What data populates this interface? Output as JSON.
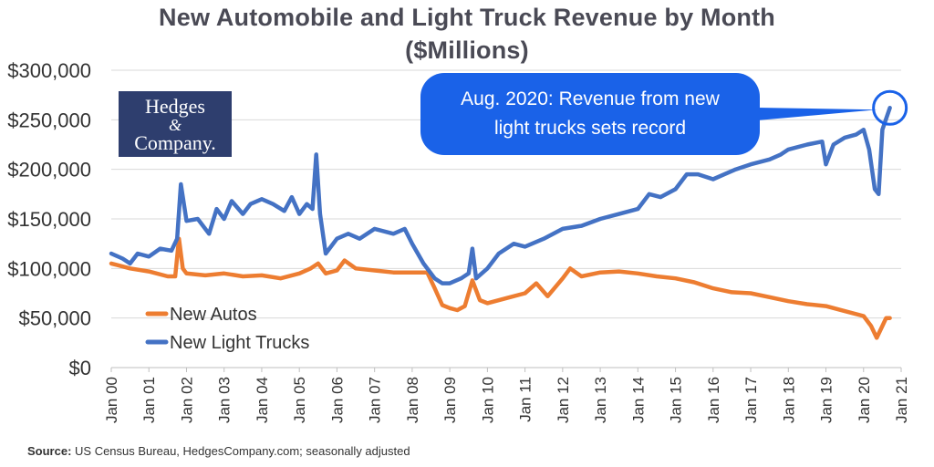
{
  "title_line1": "New Automobile and Light Truck Revenue by Month",
  "title_line2": "($Millions)",
  "source_label": "Source:",
  "source_text": " US Census Bureau, HedgesCompany.com; seasonally adjusted",
  "logo": {
    "line1": "Hedges",
    "line2": "&",
    "line3": "Company."
  },
  "callout": {
    "line1": "Aug. 2020: Revenue from new",
    "line2": "light trucks sets record"
  },
  "colors": {
    "autos": "#ed7d31",
    "trucks": "#4472c4",
    "callout": "#1a62e8",
    "logo": "#2e3e6e"
  },
  "chart_data": {
    "type": "line",
    "y_ticks": [
      "$0",
      "$50,000",
      "$100,000",
      "$150,000",
      "$200,000",
      "$250,000",
      "$300,000"
    ],
    "ylim": [
      0,
      300000
    ],
    "x_ticks": [
      "Jan 00",
      "Jan 01",
      "Jan 02",
      "Jan 03",
      "Jan 04",
      "Jan 05",
      "Jan 06",
      "Jan 07",
      "Jan 08",
      "Jan 09",
      "Jan 10",
      "Jan 11",
      "Jan 12",
      "Jan 13",
      "Jan 14",
      "Jan 15",
      "Jan 16",
      "Jan 17",
      "Jan 18",
      "Jan 19",
      "Jan 20",
      "Jan 21"
    ],
    "xlim": [
      2000,
      2021
    ],
    "legend_position": "lower-left",
    "grid": true,
    "series": [
      {
        "name": "New Autos",
        "color": "#ed7d31",
        "points": [
          [
            2000.0,
            105000
          ],
          [
            2000.5,
            100000
          ],
          [
            2001.0,
            97000
          ],
          [
            2001.5,
            92000
          ],
          [
            2001.7,
            92000
          ],
          [
            2001.8,
            130000
          ],
          [
            2001.9,
            100000
          ],
          [
            2002.0,
            95000
          ],
          [
            2002.5,
            93000
          ],
          [
            2003.0,
            95000
          ],
          [
            2003.5,
            92000
          ],
          [
            2004.0,
            93000
          ],
          [
            2004.5,
            90000
          ],
          [
            2005.0,
            95000
          ],
          [
            2005.3,
            100000
          ],
          [
            2005.5,
            105000
          ],
          [
            2005.7,
            95000
          ],
          [
            2006.0,
            98000
          ],
          [
            2006.2,
            108000
          ],
          [
            2006.5,
            100000
          ],
          [
            2007.0,
            98000
          ],
          [
            2007.5,
            96000
          ],
          [
            2008.0,
            96000
          ],
          [
            2008.4,
            96000
          ],
          [
            2008.6,
            80000
          ],
          [
            2008.8,
            63000
          ],
          [
            2009.0,
            60000
          ],
          [
            2009.2,
            58000
          ],
          [
            2009.4,
            62000
          ],
          [
            2009.6,
            88000
          ],
          [
            2009.8,
            68000
          ],
          [
            2010.0,
            65000
          ],
          [
            2010.5,
            70000
          ],
          [
            2011.0,
            75000
          ],
          [
            2011.3,
            85000
          ],
          [
            2011.6,
            72000
          ],
          [
            2012.0,
            90000
          ],
          [
            2012.2,
            100000
          ],
          [
            2012.5,
            92000
          ],
          [
            2013.0,
            96000
          ],
          [
            2013.5,
            97000
          ],
          [
            2014.0,
            95000
          ],
          [
            2014.5,
            92000
          ],
          [
            2015.0,
            90000
          ],
          [
            2015.5,
            86000
          ],
          [
            2016.0,
            80000
          ],
          [
            2016.5,
            76000
          ],
          [
            2017.0,
            75000
          ],
          [
            2017.5,
            71000
          ],
          [
            2018.0,
            67000
          ],
          [
            2018.5,
            64000
          ],
          [
            2019.0,
            62000
          ],
          [
            2019.5,
            57000
          ],
          [
            2020.0,
            52000
          ],
          [
            2020.2,
            42000
          ],
          [
            2020.35,
            30000
          ],
          [
            2020.5,
            42000
          ],
          [
            2020.6,
            50000
          ],
          [
            2020.7,
            50000
          ]
        ]
      },
      {
        "name": "New Light Trucks",
        "color": "#4472c4",
        "points": [
          [
            2000.0,
            115000
          ],
          [
            2000.3,
            110000
          ],
          [
            2000.5,
            105000
          ],
          [
            2000.7,
            115000
          ],
          [
            2001.0,
            112000
          ],
          [
            2001.3,
            120000
          ],
          [
            2001.6,
            118000
          ],
          [
            2001.75,
            130000
          ],
          [
            2001.85,
            185000
          ],
          [
            2002.0,
            148000
          ],
          [
            2002.3,
            150000
          ],
          [
            2002.6,
            135000
          ],
          [
            2002.8,
            160000
          ],
          [
            2003.0,
            150000
          ],
          [
            2003.2,
            168000
          ],
          [
            2003.5,
            155000
          ],
          [
            2003.7,
            165000
          ],
          [
            2004.0,
            170000
          ],
          [
            2004.3,
            165000
          ],
          [
            2004.6,
            158000
          ],
          [
            2004.8,
            172000
          ],
          [
            2005.0,
            155000
          ],
          [
            2005.2,
            165000
          ],
          [
            2005.35,
            160000
          ],
          [
            2005.45,
            215000
          ],
          [
            2005.55,
            155000
          ],
          [
            2005.7,
            115000
          ],
          [
            2006.0,
            130000
          ],
          [
            2006.3,
            135000
          ],
          [
            2006.6,
            130000
          ],
          [
            2007.0,
            140000
          ],
          [
            2007.5,
            135000
          ],
          [
            2007.8,
            140000
          ],
          [
            2008.0,
            125000
          ],
          [
            2008.3,
            105000
          ],
          [
            2008.6,
            90000
          ],
          [
            2008.8,
            85000
          ],
          [
            2009.0,
            85000
          ],
          [
            2009.3,
            90000
          ],
          [
            2009.5,
            95000
          ],
          [
            2009.6,
            120000
          ],
          [
            2009.7,
            90000
          ],
          [
            2010.0,
            100000
          ],
          [
            2010.3,
            115000
          ],
          [
            2010.7,
            125000
          ],
          [
            2011.0,
            122000
          ],
          [
            2011.5,
            130000
          ],
          [
            2012.0,
            140000
          ],
          [
            2012.5,
            143000
          ],
          [
            2013.0,
            150000
          ],
          [
            2013.5,
            155000
          ],
          [
            2014.0,
            160000
          ],
          [
            2014.3,
            175000
          ],
          [
            2014.6,
            172000
          ],
          [
            2015.0,
            180000
          ],
          [
            2015.3,
            195000
          ],
          [
            2015.6,
            195000
          ],
          [
            2016.0,
            190000
          ],
          [
            2016.3,
            195000
          ],
          [
            2016.6,
            200000
          ],
          [
            2017.0,
            205000
          ],
          [
            2017.5,
            210000
          ],
          [
            2017.8,
            215000
          ],
          [
            2018.0,
            220000
          ],
          [
            2018.5,
            225000
          ],
          [
            2018.9,
            228000
          ],
          [
            2019.0,
            205000
          ],
          [
            2019.2,
            225000
          ],
          [
            2019.5,
            232000
          ],
          [
            2019.8,
            235000
          ],
          [
            2020.0,
            240000
          ],
          [
            2020.15,
            220000
          ],
          [
            2020.3,
            180000
          ],
          [
            2020.4,
            175000
          ],
          [
            2020.5,
            240000
          ],
          [
            2020.7,
            262000
          ]
        ]
      }
    ]
  }
}
